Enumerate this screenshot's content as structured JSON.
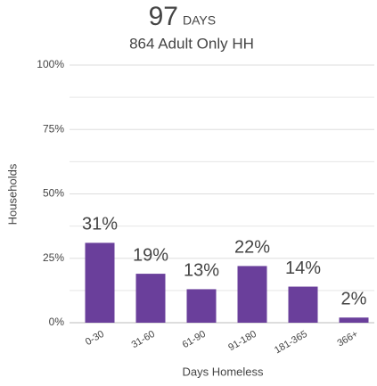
{
  "chart_data": {
    "type": "bar",
    "title": "97",
    "title_unit": "DAYS",
    "subtitle": "864 Adult Only HH",
    "x_label": "Days Homeless",
    "y_label": "Households",
    "categories": [
      "0-30",
      "31-60",
      "61-90",
      "91-180",
      "181-365",
      "366+"
    ],
    "values": [
      31,
      19,
      13,
      22,
      14,
      2
    ],
    "value_labels": [
      "31%",
      "19%",
      "13%",
      "22%",
      "14%",
      "2%"
    ],
    "color": "#6a3f9b",
    "ylim": [
      0,
      100
    ],
    "yticks": [
      {
        "value": 0,
        "label": "0%"
      },
      {
        "value": 25,
        "label": "25%"
      },
      {
        "value": 50,
        "label": "50%"
      },
      {
        "value": 75,
        "label": "75%"
      },
      {
        "value": 100,
        "label": "100%"
      }
    ],
    "minor_yticks": [
      12.5,
      37.5,
      62.5,
      87.5
    ],
    "grid": true
  }
}
